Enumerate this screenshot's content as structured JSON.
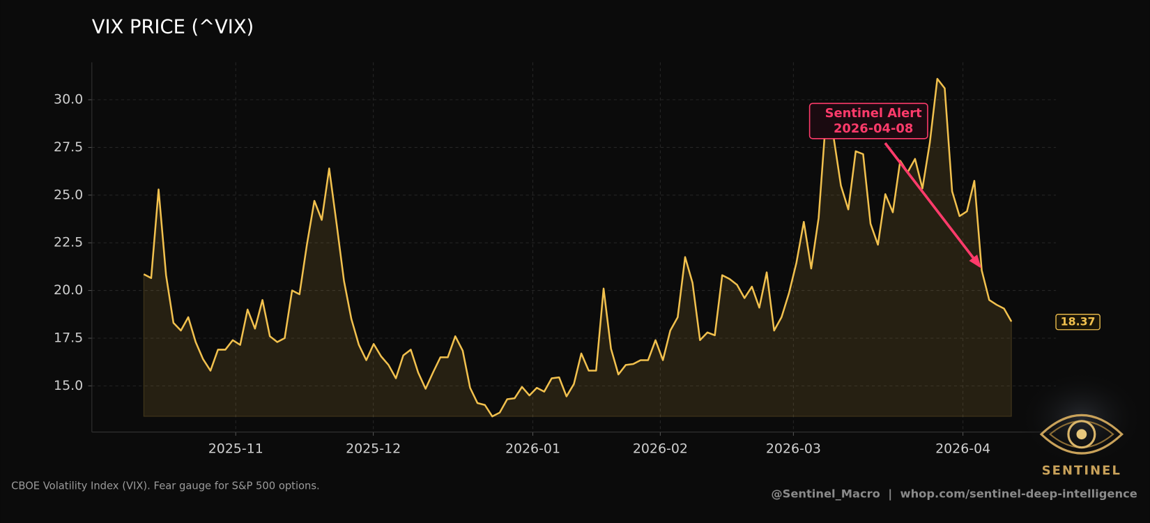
{
  "chart_data": {
    "type": "line",
    "title": "VIX PRICE (^VIX)",
    "series": [
      {
        "color": "#f2c14e",
        "values": [
          20.85,
          20.65,
          25.3,
          20.8,
          18.3,
          17.9,
          18.6,
          17.3,
          16.4,
          15.8,
          16.9,
          16.9,
          17.4,
          17.15,
          19.0,
          18.0,
          19.5,
          17.6,
          17.3,
          17.5,
          20.0,
          19.8,
          22.4,
          24.7,
          23.7,
          26.4,
          23.5,
          20.5,
          18.5,
          17.15,
          16.35,
          17.2,
          16.55,
          16.1,
          15.4,
          16.6,
          16.9,
          15.7,
          14.85,
          15.7,
          16.5,
          16.5,
          17.6,
          16.85,
          14.9,
          14.1,
          14.0,
          13.4,
          13.6,
          14.3,
          14.35,
          14.95,
          14.5,
          14.9,
          14.7,
          15.4,
          15.45,
          14.45,
          15.1,
          16.7,
          15.8,
          15.8,
          20.1,
          16.95,
          15.6,
          16.1,
          16.15,
          16.35,
          16.35,
          17.4,
          16.35,
          17.9,
          18.6,
          21.75,
          20.4,
          17.4,
          17.8,
          17.65,
          20.8,
          20.6,
          20.3,
          19.6,
          20.2,
          19.1,
          20.95,
          17.9,
          18.6,
          19.85,
          21.45,
          23.6,
          21.15,
          23.8,
          29.1,
          28.1,
          25.5,
          24.25,
          27.3,
          27.15,
          23.5,
          22.4,
          25.05,
          24.1,
          26.8,
          26.2,
          26.9,
          25.35,
          27.75,
          31.1,
          30.6,
          25.2,
          23.9,
          24.15,
          25.75,
          21.05,
          19.5,
          19.25,
          19.05,
          18.37
        ]
      }
    ],
    "xlim": [
      -7,
      123
    ],
    "xticks": [
      {
        "value": 12.4,
        "label": "2025-11"
      },
      {
        "value": 30.95,
        "label": "2025-12"
      },
      {
        "value": 52.46,
        "label": "2026-01"
      },
      {
        "value": 69.65,
        "label": "2026-02"
      },
      {
        "value": 87.6,
        "label": "2026-03"
      },
      {
        "value": 110.46,
        "label": "2026-04"
      }
    ],
    "ylim": [
      12.58,
      31.96
    ],
    "yticks": [
      {
        "value": 15,
        "label": "15.0"
      },
      {
        "value": 17.5,
        "label": "17.5"
      },
      {
        "value": 20,
        "label": "20.0"
      },
      {
        "value": 22.5,
        "label": "22.5"
      },
      {
        "value": 25,
        "label": "25.0"
      },
      {
        "value": 27.5,
        "label": "27.5"
      },
      {
        "value": 30,
        "label": "30.0"
      }
    ],
    "grid": true,
    "annotation": {
      "lines": [
        "Sentinel Alert",
        "2026-04-08"
      ],
      "point_index": 113,
      "color": "#ff3b6b"
    },
    "caption": "CBOE Volatility Index (VIX). Fear gauge for S&P 500 options.",
    "credit": "@Sentinel_Macro  |  whop.com/sentinel-deep-intelligence",
    "logo_text": "SENTINEL"
  }
}
